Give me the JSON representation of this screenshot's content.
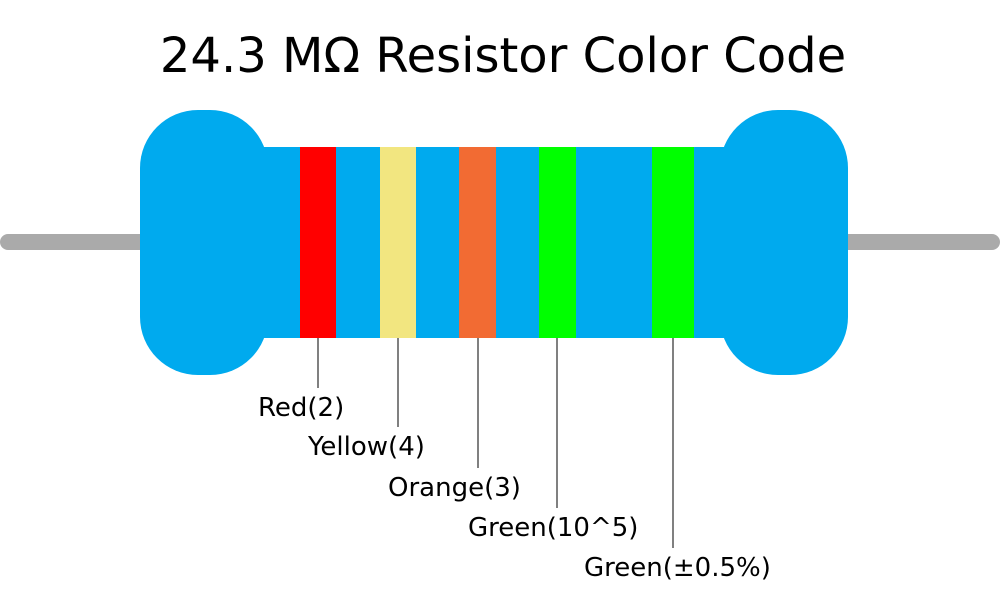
{
  "title": "24.3 MΩ Resistor Color Code",
  "colors": {
    "body": "#00AAEE",
    "lead": "#AAAAAA",
    "leader_line": "#000000"
  },
  "bands": [
    {
      "name": "band-1",
      "color_name": "Red",
      "hex": "#FF0000",
      "label": "Red(2)"
    },
    {
      "name": "band-2",
      "color_name": "Yellow",
      "hex": "#F2E680",
      "label": "Yellow(4)"
    },
    {
      "name": "band-3",
      "color_name": "Orange",
      "hex": "#F26B33",
      "label": "Orange(3)"
    },
    {
      "name": "band-4",
      "color_name": "Green",
      "hex": "#00FF00",
      "label": "Green(10^5)"
    },
    {
      "name": "band-5",
      "color_name": "Green",
      "hex": "#00FF00",
      "label": "Green(±0.5%)"
    }
  ]
}
